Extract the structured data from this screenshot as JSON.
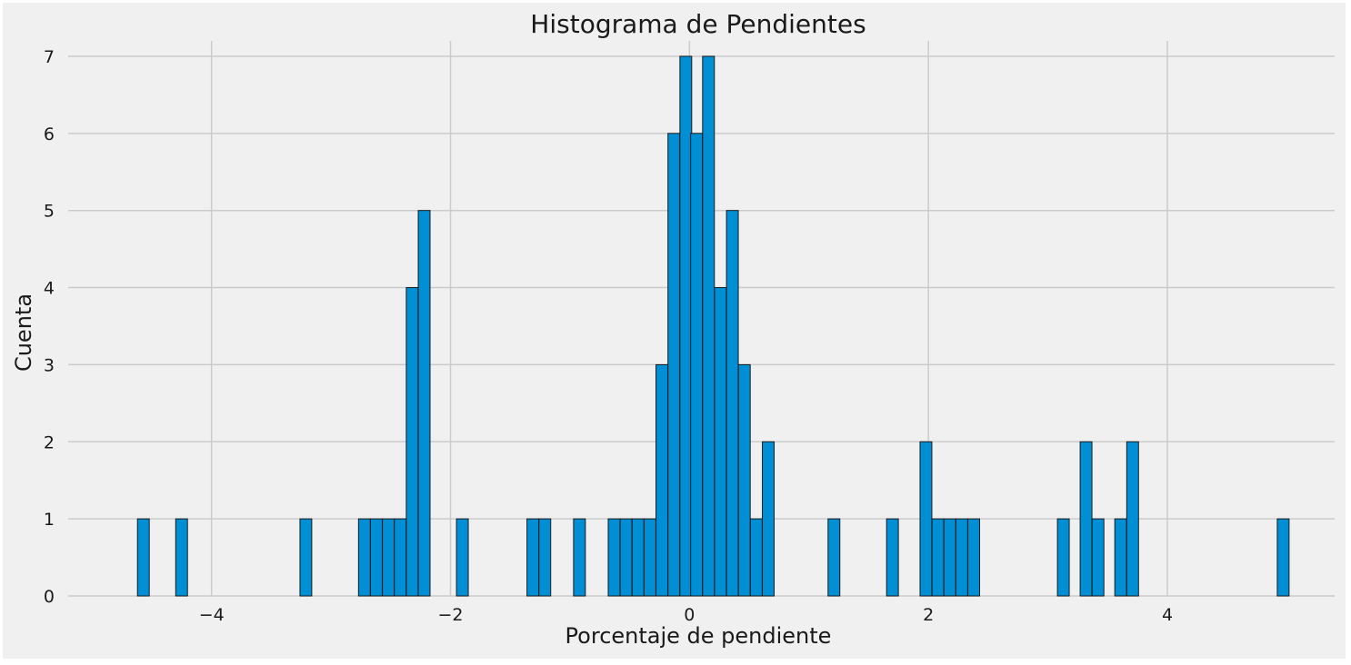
{
  "chart_data": {
    "type": "bar",
    "title": "Histograma de Pendientes",
    "xlabel": "Porcentaje de pendiente",
    "ylabel": "Cuenta",
    "xlim": [
      -5.2,
      5.4
    ],
    "ylim": [
      0,
      7.2
    ],
    "x_ticks": [
      -4,
      -2,
      0,
      2,
      4
    ],
    "x_tick_labels": [
      "−4",
      "−2",
      "0",
      "2",
      "4"
    ],
    "y_ticks": [
      0,
      1,
      2,
      3,
      4,
      5,
      6,
      7
    ],
    "y_tick_labels": [
      "0",
      "1",
      "2",
      "3",
      "4",
      "5",
      "6",
      "7"
    ],
    "grid": true,
    "bin_width": 0.0986,
    "bins": [
      {
        "x": -4.62,
        "count": 1
      },
      {
        "x": -4.3,
        "count": 1
      },
      {
        "x": -3.26,
        "count": 1
      },
      {
        "x": -2.77,
        "count": 1
      },
      {
        "x": -2.67,
        "count": 1
      },
      {
        "x": -2.57,
        "count": 1
      },
      {
        "x": -2.47,
        "count": 1
      },
      {
        "x": -2.37,
        "count": 4
      },
      {
        "x": -2.27,
        "count": 5
      },
      {
        "x": -1.95,
        "count": 1
      },
      {
        "x": -1.36,
        "count": 1
      },
      {
        "x": -1.26,
        "count": 1
      },
      {
        "x": -0.97,
        "count": 1
      },
      {
        "x": -0.68,
        "count": 1
      },
      {
        "x": -0.58,
        "count": 1
      },
      {
        "x": -0.48,
        "count": 1
      },
      {
        "x": -0.38,
        "count": 1
      },
      {
        "x": -0.28,
        "count": 3
      },
      {
        "x": -0.18,
        "count": 6
      },
      {
        "x": -0.08,
        "count": 7
      },
      {
        "x": 0.01,
        "count": 6
      },
      {
        "x": 0.11,
        "count": 7
      },
      {
        "x": 0.21,
        "count": 4
      },
      {
        "x": 0.31,
        "count": 5
      },
      {
        "x": 0.41,
        "count": 3
      },
      {
        "x": 0.51,
        "count": 1
      },
      {
        "x": 0.61,
        "count": 2
      },
      {
        "x": 1.16,
        "count": 1
      },
      {
        "x": 1.65,
        "count": 1
      },
      {
        "x": 1.93,
        "count": 2
      },
      {
        "x": 2.03,
        "count": 1
      },
      {
        "x": 2.13,
        "count": 1
      },
      {
        "x": 2.23,
        "count": 1
      },
      {
        "x": 2.33,
        "count": 1
      },
      {
        "x": 3.08,
        "count": 1
      },
      {
        "x": 3.27,
        "count": 2
      },
      {
        "x": 3.37,
        "count": 1
      },
      {
        "x": 3.56,
        "count": 1
      },
      {
        "x": 3.66,
        "count": 2
      },
      {
        "x": 4.92,
        "count": 1
      }
    ],
    "colors": {
      "bar": "#008fd5",
      "bar_edge": "#1a1a1a",
      "axes_background": "#f0f0f0",
      "grid": "#cbcbcb"
    }
  }
}
